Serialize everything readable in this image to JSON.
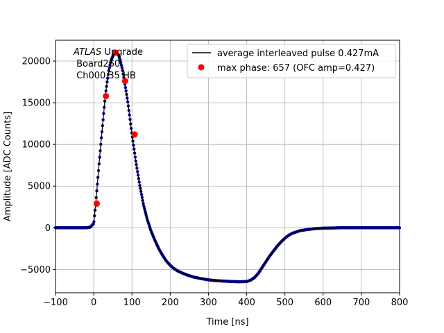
{
  "chart_data": {
    "type": "scatter",
    "title": "",
    "xlabel": "Time [ns]",
    "ylabel": "Amplitude [ADC Counts]",
    "xlim": [
      -100,
      800
    ],
    "ylim": [
      -7800,
      22500
    ],
    "xticks": [
      -100,
      0,
      100,
      200,
      300,
      400,
      500,
      600,
      700,
      800
    ],
    "yticks": [
      -5000,
      0,
      5000,
      10000,
      15000,
      20000
    ],
    "grid": true,
    "legend_placement": "top-right",
    "annotation": {
      "italic": "ATLAS",
      "line1_rest": " Upgrade",
      "line2": " Board260",
      "line3": " Ch000 35 HB"
    },
    "series": [
      {
        "name": "average interleaved pulse 0.427mA",
        "style": "line",
        "color": "#000000",
        "point_color": "#00008b",
        "x": [
          -100,
          -50,
          -20,
          -10,
          0,
          5,
          10,
          15,
          20,
          25,
          30,
          35,
          40,
          45,
          50,
          55,
          60,
          65,
          70,
          75,
          80,
          85,
          90,
          95,
          100,
          110,
          120,
          130,
          140,
          150,
          160,
          170,
          180,
          190,
          200,
          210,
          220,
          240,
          260,
          280,
          300,
          320,
          340,
          360,
          380,
          400,
          410,
          420,
          430,
          440,
          450,
          460,
          470,
          480,
          490,
          500,
          510,
          520,
          540,
          560,
          580,
          600,
          650,
          700,
          750,
          800
        ],
        "y": [
          0,
          0,
          0,
          50,
          500,
          2800,
          5500,
          8200,
          10800,
          13200,
          15700,
          17500,
          19000,
          20000,
          20600,
          20900,
          21000,
          20700,
          20000,
          19000,
          17600,
          16300,
          14800,
          13000,
          11200,
          8000,
          5200,
          2800,
          1000,
          -400,
          -1500,
          -2500,
          -3300,
          -4000,
          -4500,
          -4900,
          -5200,
          -5600,
          -5900,
          -6100,
          -6250,
          -6350,
          -6400,
          -6450,
          -6480,
          -6450,
          -6300,
          -6000,
          -5500,
          -4800,
          -4100,
          -3400,
          -2800,
          -2200,
          -1700,
          -1250,
          -900,
          -650,
          -350,
          -200,
          -100,
          -50,
          0,
          0,
          0,
          0
        ]
      },
      {
        "name": "max phase: 657 (OFC amp=0.427)",
        "style": "marker",
        "color": "#ff0000",
        "x": [
          8,
          32,
          57,
          82,
          107
        ],
        "y": [
          2900,
          15800,
          21000,
          17600,
          11200
        ]
      }
    ]
  }
}
